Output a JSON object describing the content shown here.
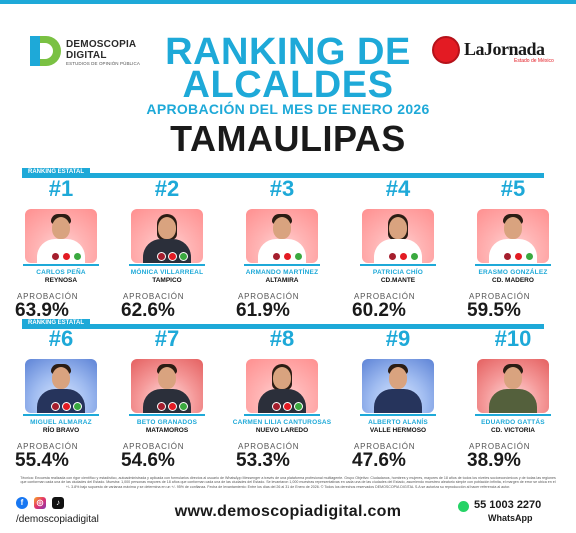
{
  "header": {
    "brand_name_line1": "DEMOSCOPIA",
    "brand_name_line2": "DIGITAL",
    "brand_tagline": "ESTUDIOS DE OPINIÓN PÚBLICA",
    "partner_name": "LaJornada",
    "partner_subtitle": "Estado de México",
    "title_line1": "RANKING DE",
    "title_line2": "ALCALDES",
    "subtitle": "APROBACIÓN DEL MES DE ENERO 2026",
    "state": "TAMAULIPAS"
  },
  "section_label": "RANKING ESTATAL",
  "approval_label": "APROBACIÓN",
  "mayors": [
    {
      "rank": "#1",
      "name": "CARLOS PEÑA",
      "city": "REYNOSA",
      "approval": "63.9%"
    },
    {
      "rank": "#2",
      "name": "MÓNICA VILLARREAL",
      "city": "TAMPICO",
      "approval": "62.6%"
    },
    {
      "rank": "#3",
      "name": "ARMANDO MARTÍNEZ",
      "city": "ALTAMIRA",
      "approval": "61.9%"
    },
    {
      "rank": "#4",
      "name": "PATRICIA CHÍO",
      "city": "CD.MANTE",
      "approval": "60.2%"
    },
    {
      "rank": "#5",
      "name": "ERASMO GONZÁLEZ",
      "city": "CD. MADERO",
      "approval": "59.5%"
    },
    {
      "rank": "#6",
      "name": "MIGUEL ALMARAZ",
      "city": "RÍO BRAVO",
      "approval": "55.4%"
    },
    {
      "rank": "#7",
      "name": "BETO GRANADOS",
      "city": "MATAMOROS",
      "approval": "54.6%"
    },
    {
      "rank": "#8",
      "name": "CARMEN LILIA CANTUROSAS",
      "city": "NUEVO LAREDO",
      "approval": "53.3%"
    },
    {
      "rank": "#9",
      "name": "ALBERTO ALANÍS",
      "city": "VALLE HERMOSO",
      "approval": "47.6%"
    },
    {
      "rank": "#10",
      "name": "EDUARDO GATTÁS",
      "city": "CD. VICTORIA",
      "approval": "38.9%"
    }
  ],
  "footer": {
    "disclaimer": "Técnica: Encuesta realizada con rigor científico y estadístico, autoadministrada y aplicada con formularios directos al usuario de WhatsApp Messenger a través de una plataforma profesional multiagente. Grupo Objetivo: Ciudadanos, hombres y mujeres, mayores de 18 años de todos los niveles socioeconómicos y de todas las regiones que conforman cada una de las ciudades del Estado. Muestra: 1,000 personas mayores de 18 años que conforman cada una de las ciudades del Estado. Se levantaron 1,000 muestras representativas en cada una de las ciudades del Estado, asumiendo muestreo aleatorio simple con población infinita, el margen de error se ubica en el +/- 3.8% bajo supuesto de varianza máxima y se determina en un +/- 95% de confianza. Fecha de levantamiento: Entre los días del 26 al 31 de Enero de 2026. © Todos los derechos reservados DEMOSCOPIA DIGITAL S.A se autoriza su reproducción al hacer referencia al autor.",
    "social_handle": "/demoscopiadigital",
    "website": "www.demoscopiadigital.com",
    "whatsapp_number": "55 1003 2270",
    "whatsapp_label": "WhatsApp"
  },
  "colors": {
    "accent": "#1ea9d8",
    "text": "#1a1a1a"
  }
}
